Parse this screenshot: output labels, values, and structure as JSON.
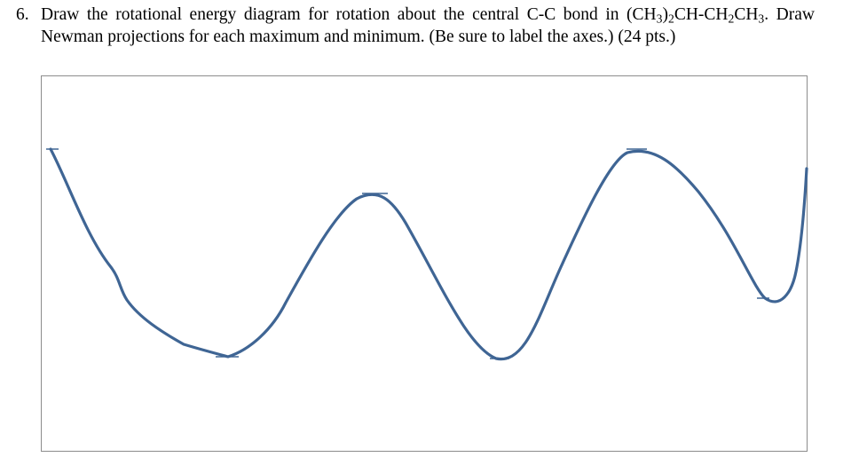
{
  "question": {
    "number": "6.",
    "text_part1": "Draw the rotational energy diagram for rotation about the central C-C bond in (CH",
    "sub_1": "3",
    "text_part2": ")",
    "sub_2": "2",
    "text_part3": "CH-CH",
    "sub_3": "2",
    "text_part4": "CH",
    "sub_4": "3",
    "text_part5": ".  Draw Newman projections for each maximum and minimum. (Be sure to label the axes.) (24 pts.)"
  },
  "diagram": {
    "curve_color": "#3f6594",
    "frame_color": "#8c8c8c"
  }
}
